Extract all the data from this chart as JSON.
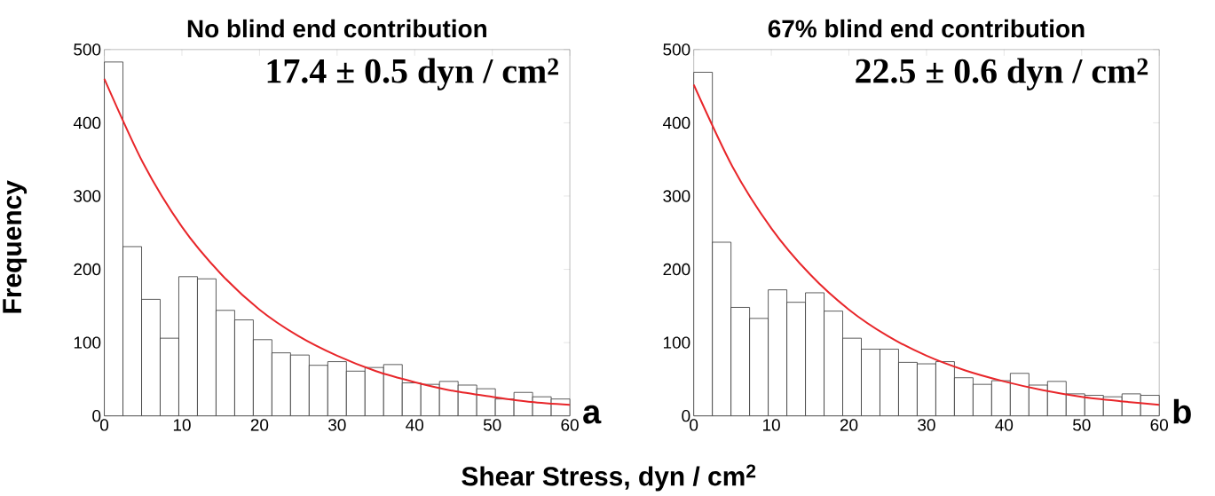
{
  "chart_data": [
    {
      "type": "histogram",
      "title": "No blind end contribution",
      "xlabel": "Shear Stress, dyn / cm$^{2}$",
      "ylabel": "Frequency",
      "series": [
        {
          "color": "#ffffff",
          "bins": [
            0,
            2.4,
            4.8,
            7.2,
            9.6,
            12,
            14.4,
            16.8,
            19.2,
            21.6,
            24,
            26.4,
            28.8,
            31.2,
            33.6,
            36,
            38.4,
            40.8,
            43.2,
            45.6,
            48,
            50.4,
            52.8,
            55.2,
            57.6,
            60
          ],
          "values": [
            483,
            231,
            159,
            106,
            190,
            187,
            144,
            131,
            104,
            86,
            83,
            69,
            74,
            61,
            66,
            70,
            45,
            43,
            47,
            42,
            37,
            23,
            32,
            26,
            23
          ]
        },
        {
          "type": "line",
          "color": "#e8262a",
          "x": [
            0,
            5,
            10,
            15,
            20,
            25,
            30,
            35,
            40,
            45,
            50,
            55,
            60
          ],
          "values": [
            460,
            345,
            258,
            194,
            145,
            109,
            82,
            61,
            46,
            34,
            26,
            19,
            15
          ]
        }
      ],
      "xlim": [
        0,
        60
      ],
      "ylim": [
        0,
        500
      ],
      "xticks": [
        0,
        10,
        20,
        30,
        40,
        50,
        60
      ],
      "yticks": [
        0,
        100,
        200,
        300,
        400,
        500
      ],
      "annotations": [
        "**17.4 ± 0.5 dyn / cm$^{2}$**",
        "a"
      ]
    },
    {
      "type": "histogram",
      "title": "67% blind end contribution",
      "series": [
        {
          "color": "#ffffff",
          "bins": [
            0,
            2.4,
            4.8,
            7.2,
            9.6,
            12,
            14.4,
            16.8,
            19.2,
            21.6,
            24,
            26.4,
            28.8,
            31.2,
            33.6,
            36,
            38.4,
            40.8,
            43.2,
            45.6,
            48,
            50.4,
            52.8,
            55.2,
            57.6,
            60
          ],
          "values": [
            469,
            237,
            148,
            133,
            172,
            155,
            168,
            143,
            106,
            91,
            91,
            73,
            71,
            74,
            52,
            43,
            48,
            58,
            42,
            47,
            30,
            28,
            26,
            30,
            28
          ]
        },
        {
          "type": "line",
          "color": "#e8262a",
          "x": [
            0,
            5,
            10,
            15,
            20,
            25,
            30,
            35,
            40,
            45,
            50,
            55,
            60
          ],
          "values": [
            452,
            340,
            256,
            193,
            145,
            109,
            82,
            62,
            47,
            35,
            26,
            20,
            15
          ]
        }
      ],
      "xlim": [
        0,
        60
      ],
      "ylim": [
        0,
        500
      ],
      "xticks": [
        0,
        10,
        20,
        30,
        40,
        50,
        60
      ],
      "yticks": [
        0,
        100,
        200,
        300,
        400,
        500
      ],
      "annotations": [
        "**22.5 ± 0.6 dyn / cm$^{2}$**",
        "b"
      ]
    }
  ]
}
